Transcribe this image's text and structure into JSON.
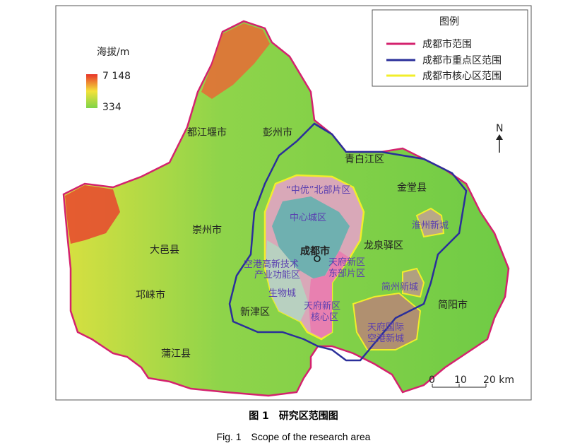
{
  "legend": {
    "title": "图例",
    "items": [
      {
        "label": "成都市范围",
        "color": "#d4226e"
      },
      {
        "label": "成都市重点区范围",
        "color": "#2a2f9a"
      },
      {
        "label": "成都市核心区范围",
        "color": "#f2ee2a"
      }
    ]
  },
  "elevation": {
    "title": "海拔/m",
    "max": "7 148",
    "min": "334",
    "colors": [
      "#e8352a",
      "#f3e23a",
      "#7ed448"
    ]
  },
  "north": "N",
  "scale": {
    "ticks": [
      "0",
      "10",
      "20 km"
    ]
  },
  "districts": [
    "都江堰市",
    "彭州市",
    "青白江区",
    "金堂县",
    "崇州市",
    "大邑县",
    "邛崃市",
    "蒲江县",
    "新津区",
    "简阳市",
    "龙泉驿区",
    "成都市"
  ],
  "zones": [
    "“中优”北部片区",
    "中心城区",
    "空港高新技术",
    "产业功能区",
    "生物城",
    "天府新区",
    "东部片区",
    "天府新区",
    "核心区",
    "淮州新城",
    "简州新城",
    "天府国际",
    "空港新城"
  ],
  "caption": {
    "cn": "图 1　研究区范围图",
    "en": "Fig. 1　Scope of the research area"
  }
}
